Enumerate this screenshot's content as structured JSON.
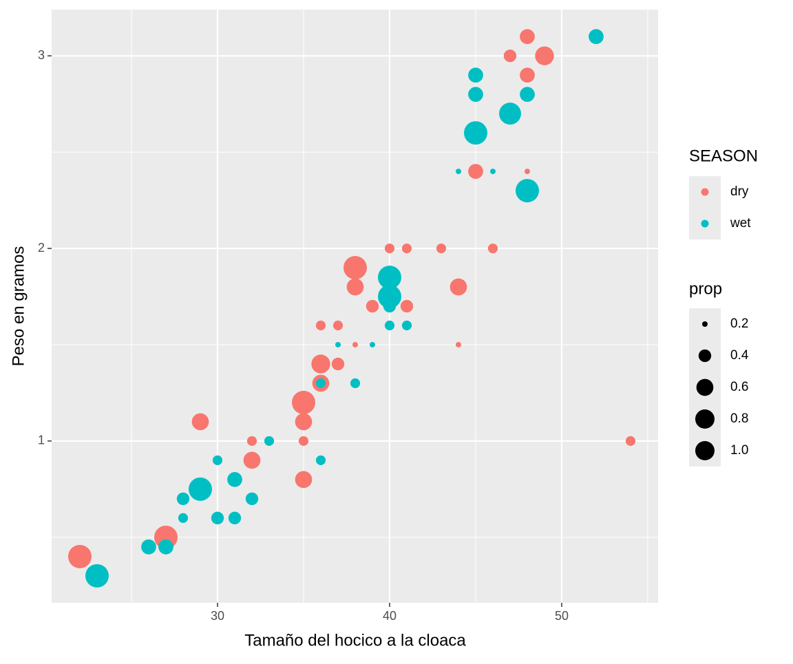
{
  "chart_data": {
    "type": "scatter",
    "x_label": "Tamaño del hocico a la cloaca",
    "y_label": "Peso en gramos",
    "xlim": [
      20.36,
      55.6
    ],
    "ylim": [
      0.16,
      3.24
    ],
    "xticks": [
      30,
      40,
      50
    ],
    "yticks": [
      1,
      2,
      3
    ],
    "grid": true,
    "color_legend": {
      "title": "SEASON"
    },
    "size_legend": {
      "title": "prop",
      "breaks": [
        0.2,
        0.4,
        0.6,
        0.8,
        {
          "value": 1,
          "label": "1.0"
        }
      ]
    },
    "series": [
      {
        "name": "dry",
        "color": "#f8766d",
        "x": [
          48,
          47,
          49,
          48,
          45,
          48,
          40,
          41,
          43,
          46,
          38,
          38,
          44,
          39,
          41,
          36,
          37,
          38,
          44,
          36,
          37,
          36,
          35,
          35,
          29,
          32,
          35,
          54,
          32,
          35,
          27,
          22
        ],
        "values": [
          3.1,
          3.0,
          3.0,
          2.9,
          2.4,
          2.4,
          2.0,
          2.0,
          2.0,
          2.0,
          1.9,
          1.8,
          1.8,
          1.7,
          1.7,
          1.6,
          1.6,
          1.5,
          1.5,
          1.4,
          1.4,
          1.3,
          1.2,
          1.1,
          1.1,
          1.0,
          1.0,
          1.0,
          0.9,
          0.8,
          0.5,
          0.4
        ],
        "sizes": [
          0.5,
          0.4,
          0.7,
          0.5,
          0.5,
          0.2,
          0.3,
          0.3,
          0.3,
          0.3,
          1.0,
          0.6,
          0.6,
          0.4,
          0.4,
          0.3,
          0.3,
          0.2,
          0.2,
          0.7,
          0.4,
          0.6,
          1.0,
          0.6,
          0.6,
          0.3,
          0.3,
          0.3,
          0.6,
          0.6,
          1.0,
          1.0
        ]
      },
      {
        "name": "wet",
        "color": "#00bfc4",
        "x": [
          52,
          45,
          45,
          48,
          47,
          45,
          44,
          46,
          48,
          40,
          40,
          40,
          40,
          41,
          37,
          39,
          36,
          38,
          33,
          30,
          36,
          31,
          29,
          28,
          32,
          28,
          30,
          31,
          26,
          27,
          23
        ],
        "values": [
          3.1,
          2.9,
          2.8,
          2.8,
          2.7,
          2.6,
          2.4,
          2.4,
          2.3,
          1.85,
          1.75,
          1.7,
          1.6,
          1.6,
          1.5,
          1.5,
          1.3,
          1.3,
          1.0,
          0.9,
          0.9,
          0.8,
          0.75,
          0.7,
          0.7,
          0.6,
          0.6,
          0.6,
          0.45,
          0.45,
          0.3
        ],
        "sizes": [
          0.5,
          0.5,
          0.5,
          0.5,
          0.9,
          1.0,
          0.2,
          0.2,
          1.0,
          1.0,
          1.0,
          0.4,
          0.3,
          0.3,
          0.2,
          0.2,
          0.3,
          0.3,
          0.3,
          0.3,
          0.3,
          0.5,
          1.0,
          0.4,
          0.4,
          0.3,
          0.4,
          0.4,
          0.5,
          0.5,
          1.0
        ]
      }
    ]
  }
}
